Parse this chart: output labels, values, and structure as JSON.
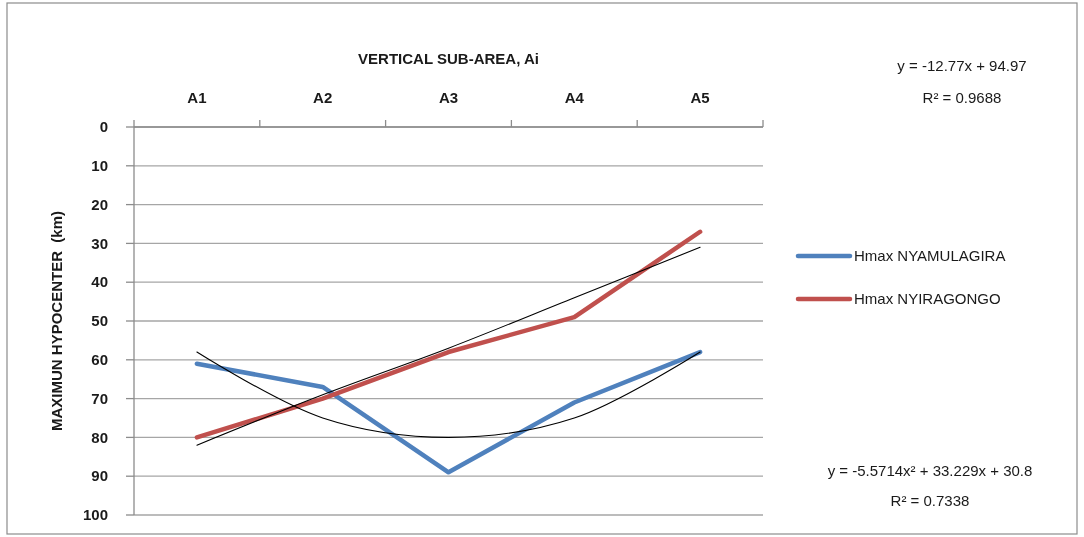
{
  "chart_data": {
    "type": "line",
    "xlabel": "VERTICAL SUB-AREA, Ai",
    "ylabel": "MAXIMUN HYPOCENTER  (km)",
    "categories": [
      "A1",
      "A2",
      "A3",
      "A4",
      "A5"
    ],
    "series": [
      {
        "name": "Hmax NYAMULAGIRA",
        "color": "#4f81bd",
        "values": [
          61,
          67,
          89,
          71,
          58
        ]
      },
      {
        "name": "Hmax NYIRAGONGO",
        "color": "#c0504d",
        "values": [
          80,
          70,
          58,
          49,
          27
        ]
      },
      {
        "color": "#000000",
        "values": [
          82,
          69,
          57,
          44,
          31
        ]
      },
      {
        "color": "#000000",
        "values": [
          58,
          75,
          80,
          75,
          58
        ]
      }
    ],
    "ylim": [
      100,
      0
    ],
    "yticks": [
      0,
      10,
      20,
      30,
      40,
      50,
      60,
      70,
      80,
      90,
      100
    ],
    "grid": "y",
    "legend": "right",
    "annotations": [
      "y = -12.77x + 94.97",
      "R² = 0.9688",
      "y = -5.5714x² + 33.229x + 30.8",
      "R² = 0.7338"
    ]
  }
}
